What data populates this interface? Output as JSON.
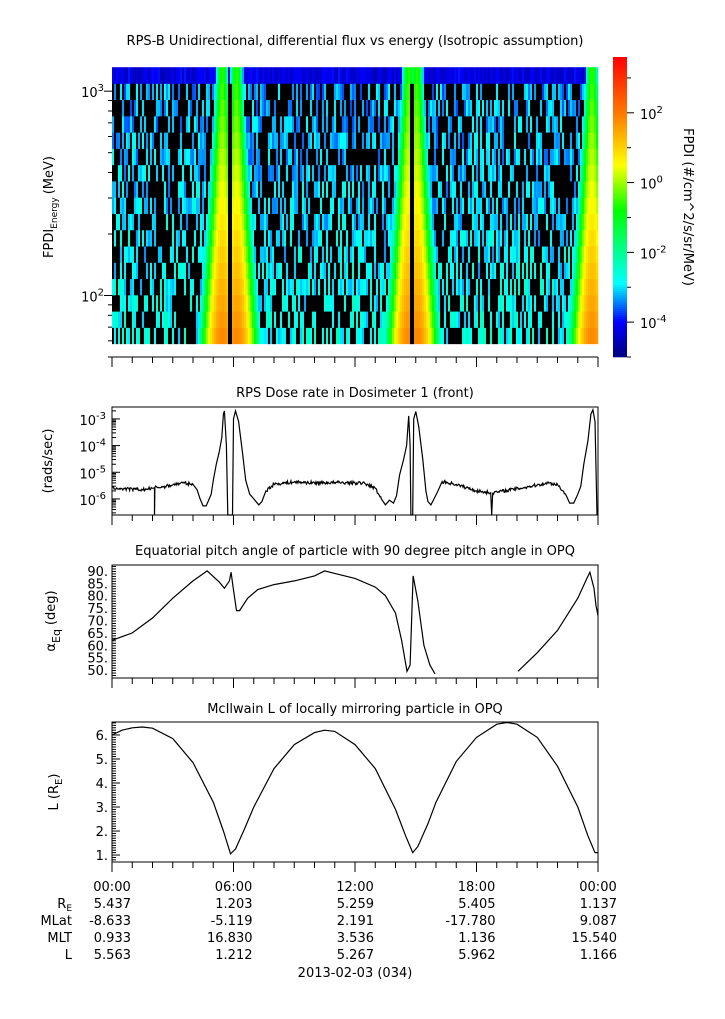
{
  "chart_data": [
    {
      "type": "heatmap",
      "title": "RPS-B  Unidirectional, differential flux vs energy (Isotropic assumption)",
      "ylabel": {
        "main": "FPDI",
        "sub": "Energy",
        "unit": "(MeV)"
      },
      "yscale": "log",
      "ylim": [
        50,
        1470
      ],
      "yticks": [
        {
          "base": "10",
          "exp": "3",
          "value": 1000
        },
        {
          "base": "10",
          "exp": "2",
          "value": 100
        }
      ],
      "energy_range_mev": [
        58,
        1310
      ],
      "energy_bins": 17,
      "xlim_hours": [
        0,
        24
      ],
      "high_flux_crossings_hours": [
        5.45,
        6.15,
        14.65,
        15.05,
        23.7
      ],
      "data_gaps_hours": [
        [
          5.68,
          5.97
        ],
        [
          14.75,
          14.88
        ]
      ],
      "colorbar": {
        "label": "FPDI (#/cm^2/s/sr/MeV)",
        "scale": "log",
        "range_log10": [
          -5,
          3.6
        ],
        "ticks": [
          {
            "base": "10",
            "exp": "2",
            "value": 2
          },
          {
            "base": "10",
            "exp": "0",
            "value": 0
          },
          {
            "base": "10",
            "exp": "-2",
            "value": -2
          },
          {
            "base": "10",
            "exp": "-4",
            "value": -4
          }
        ],
        "colormap": [
          [
            -5,
            "#000080"
          ],
          [
            -4,
            "#0000ff"
          ],
          [
            -2.9,
            "#00ffff"
          ],
          [
            -0.8,
            "#00ff00"
          ],
          [
            0.5,
            "#ffff00"
          ],
          [
            1.9,
            "#ff8000"
          ],
          [
            3.6,
            "#ff0000"
          ]
        ]
      }
    },
    {
      "type": "line",
      "title": "RPS  Dose rate in Dosimeter 1 (front)",
      "ylabel": "(rads/sec)",
      "yscale": "log",
      "ylim": [
        2.5e-07,
        0.0028
      ],
      "yticks": [
        {
          "base": "10",
          "exp": "-3",
          "value": 0.001
        },
        {
          "base": "10",
          "exp": "-4",
          "value": 0.0001
        },
        {
          "base": "10",
          "exp": "-5",
          "value": 1e-05
        },
        {
          "base": "10",
          "exp": "-6",
          "value": 1e-06
        }
      ],
      "points": [
        [
          0,
          2.6e-06
        ],
        [
          0.5,
          2.4e-06
        ],
        [
          1,
          2.3e-06
        ],
        [
          1.5,
          2.2e-06
        ],
        [
          2,
          2.5e-06
        ],
        [
          2.1,
          2.6e-06
        ],
        [
          2.1,
          1e-07
        ],
        [
          2.12,
          2.7e-06
        ],
        [
          2.5,
          2.8e-06
        ],
        [
          3,
          3.4e-06
        ],
        [
          3.5,
          4e-06
        ],
        [
          4,
          3.5e-06
        ],
        [
          4.2,
          2.2e-06
        ],
        [
          4.35,
          1e-06
        ],
        [
          4.5,
          5.5e-07
        ],
        [
          4.65,
          5.5e-07
        ],
        [
          4.8,
          1e-06
        ],
        [
          4.9,
          1.5e-06
        ],
        [
          5.0,
          5e-06
        ],
        [
          5.15,
          2e-05
        ],
        [
          5.3,
          6e-05
        ],
        [
          5.42,
          0.0002
        ],
        [
          5.5,
          0.0015
        ],
        [
          5.55,
          0.002
        ],
        [
          5.65,
          0.0001
        ],
        [
          5.72,
          1e-07
        ],
        [
          5.95,
          1e-07
        ],
        [
          6.0,
          0.001
        ],
        [
          6.1,
          0.002
        ],
        [
          6.25,
          0.0008
        ],
        [
          6.45,
          5e-05
        ],
        [
          6.6,
          5e-06
        ],
        [
          6.8,
          1.5e-06
        ],
        [
          7.0,
          1e-06
        ],
        [
          7.25,
          6e-07
        ],
        [
          7.4,
          8e-07
        ],
        [
          7.6,
          2e-06
        ],
        [
          8,
          3.6e-06
        ],
        [
          9,
          4.3e-06
        ],
        [
          10,
          4e-06
        ],
        [
          11,
          4.1e-06
        ],
        [
          12,
          4e-06
        ],
        [
          12.5,
          3.8e-06
        ],
        [
          13,
          2.5e-06
        ],
        [
          13.3,
          1e-06
        ],
        [
          13.5,
          6e-07
        ],
        [
          13.7,
          9e-07
        ],
        [
          13.9,
          7e-07
        ],
        [
          14.05,
          1.3e-06
        ],
        [
          14.2,
          8e-06
        ],
        [
          14.4,
          3e-05
        ],
        [
          14.55,
          0.0001
        ],
        [
          14.65,
          0.0013
        ],
        [
          14.72,
          0.0001
        ],
        [
          14.76,
          1e-07
        ],
        [
          14.85,
          1e-07
        ],
        [
          14.9,
          0.001
        ],
        [
          15.0,
          0.0019
        ],
        [
          15.15,
          0.0005
        ],
        [
          15.35,
          3e-05
        ],
        [
          15.5,
          2e-06
        ],
        [
          15.6,
          8e-07
        ],
        [
          15.75,
          6e-07
        ],
        [
          15.9,
          1e-06
        ],
        [
          16.1,
          2e-06
        ],
        [
          16.3,
          4.5e-06
        ],
        [
          17,
          3.5e-06
        ],
        [
          18,
          2e-06
        ],
        [
          18.7,
          1.7e-06
        ],
        [
          18.75,
          1e-07
        ],
        [
          18.8,
          1.7e-06
        ],
        [
          19.5,
          2.1e-06
        ],
        [
          20.5,
          2.8e-06
        ],
        [
          21.5,
          4e-06
        ],
        [
          22,
          3.5e-06
        ],
        [
          22.4,
          1.5e-06
        ],
        [
          22.6,
          7e-07
        ],
        [
          22.8,
          7e-07
        ],
        [
          23.0,
          1.5e-06
        ],
        [
          23.15,
          3e-06
        ],
        [
          23.3,
          2e-05
        ],
        [
          23.5,
          0.00015
        ],
        [
          23.65,
          0.0015
        ],
        [
          23.75,
          0.0022
        ],
        [
          23.85,
          0.0008
        ],
        [
          23.95,
          1e-07
        ]
      ]
    },
    {
      "type": "line",
      "title": "Equatorial pitch angle of particle with 90 degree pitch angle in OPQ",
      "ylabel": {
        "main": "α",
        "sub": "Eq",
        "unit": "(deg)"
      },
      "ylim": [
        46.8,
        92.4
      ],
      "yticks": [
        "90.",
        "85.",
        "80.",
        "75.",
        "70.",
        "65.",
        "60.",
        "55.",
        "50."
      ],
      "points": [
        [
          0,
          62
        ],
        [
          1,
          65
        ],
        [
          2,
          71
        ],
        [
          3,
          79
        ],
        [
          4,
          86
        ],
        [
          4.7,
          90
        ],
        [
          5.3,
          85.5
        ],
        [
          5.55,
          83
        ],
        [
          5.8,
          86
        ],
        [
          5.88,
          89.5
        ],
        [
          5.97,
          84
        ],
        [
          6.15,
          74
        ],
        [
          6.3,
          74
        ],
        [
          6.7,
          79
        ],
        [
          7.2,
          82.5
        ],
        [
          8,
          84.5
        ],
        [
          9,
          86
        ],
        [
          10,
          88
        ],
        [
          10.5,
          90
        ],
        [
          11,
          89
        ],
        [
          12,
          87
        ],
        [
          13,
          83.5
        ],
        [
          13.5,
          80
        ],
        [
          14,
          73
        ],
        [
          14.3,
          62
        ],
        [
          14.57,
          49.5
        ],
        [
          14.72,
          52
        ],
        [
          14.87,
          88
        ],
        [
          15.1,
          78
        ],
        [
          15.4,
          60
        ],
        [
          15.7,
          52
        ],
        [
          15.95,
          48.5
        ],
        [
          null,
          null
        ],
        [
          20.05,
          49.5
        ],
        [
          21,
          57
        ],
        [
          22,
          66
        ],
        [
          23,
          79
        ],
        [
          23.45,
          87
        ],
        [
          23.6,
          89.5
        ],
        [
          23.8,
          83
        ],
        [
          23.9,
          76
        ],
        [
          24,
          72
        ]
      ]
    },
    {
      "type": "line",
      "title": "McIlwain L of locally mirroring particle in OPQ",
      "ylabel": {
        "main": "L (R",
        "sub": "E",
        "unit": ")"
      },
      "ylim": [
        0.71,
        6.54
      ],
      "yticks": [
        "6.",
        "5.",
        "4.",
        "3.",
        "2.",
        "1."
      ],
      "points": [
        [
          0,
          6.0
        ],
        [
          0.5,
          6.2
        ],
        [
          1,
          6.3
        ],
        [
          1.5,
          6.33
        ],
        [
          2,
          6.28
        ],
        [
          3,
          5.85
        ],
        [
          4,
          4.85
        ],
        [
          5,
          3.2
        ],
        [
          5.5,
          2.0
        ],
        [
          5.85,
          1.05
        ],
        [
          6.1,
          1.25
        ],
        [
          6.5,
          2.0
        ],
        [
          7,
          3.0
        ],
        [
          8,
          4.6
        ],
        [
          9,
          5.6
        ],
        [
          10,
          6.1
        ],
        [
          10.5,
          6.2
        ],
        [
          11,
          6.15
        ],
        [
          12,
          5.6
        ],
        [
          13,
          4.6
        ],
        [
          14,
          2.9
        ],
        [
          14.5,
          1.8
        ],
        [
          14.85,
          1.1
        ],
        [
          15.1,
          1.35
        ],
        [
          15.6,
          2.3
        ],
        [
          16,
          3.2
        ],
        [
          17,
          4.9
        ],
        [
          18,
          5.9
        ],
        [
          19,
          6.45
        ],
        [
          19.5,
          6.52
        ],
        [
          20,
          6.45
        ],
        [
          21,
          5.9
        ],
        [
          22,
          4.7
        ],
        [
          23,
          3.0
        ],
        [
          23.5,
          1.8
        ],
        [
          23.85,
          1.1
        ],
        [
          24,
          1.1
        ]
      ]
    }
  ],
  "xaxis": {
    "ticks": [
      "00:00",
      "06:00",
      "12:00",
      "18:00",
      "00:00"
    ],
    "rows": [
      {
        "label": "R",
        "label_sub": "E",
        "values": [
          "5.437",
          "1.203",
          "5.259",
          "5.405",
          "1.137"
        ]
      },
      {
        "label": "MLat",
        "label_sub": "",
        "values": [
          "-8.633",
          "-5.119",
          "2.191",
          "-17.780",
          "9.087"
        ]
      },
      {
        "label": "MLT",
        "label_sub": "",
        "values": [
          "0.933",
          "16.830",
          "3.536",
          "1.136",
          "15.540"
        ]
      },
      {
        "label": "L",
        "label_sub": "",
        "values": [
          "5.563",
          "1.212",
          "5.267",
          "5.962",
          "1.166"
        ]
      }
    ],
    "date": "2013-02-03 (034)"
  }
}
